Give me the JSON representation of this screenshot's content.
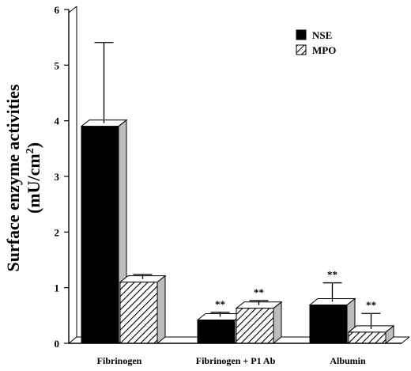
{
  "chart_data": {
    "type": "bar",
    "title": "",
    "xlabel": "",
    "ylabel_line1": "Surface enzyme activities",
    "ylabel_line2": "(mU/cm",
    "ylabel_sup": "2",
    "ylabel_close": ")",
    "ylim": [
      0,
      6
    ],
    "yticks": [
      "0",
      "1",
      "2",
      "3",
      "4",
      "5",
      "6"
    ],
    "categories": [
      "Fibrinogen",
      "Fibrinogen + P1 Ab",
      "Albumin"
    ],
    "series": [
      {
        "name": "NSE",
        "values": [
          3.9,
          0.42,
          0.69
        ],
        "errors": [
          1.45,
          0.08,
          0.34
        ],
        "sig": [
          "",
          "**",
          "**"
        ],
        "color": "#000000"
      },
      {
        "name": "MPO",
        "values": [
          1.1,
          0.63,
          0.2
        ],
        "errors": [
          0.08,
          0.08,
          0.28
        ],
        "sig": [
          "",
          "**",
          "**"
        ],
        "color": "hatched"
      }
    ],
    "legend_position": "top-right",
    "grid": false
  }
}
